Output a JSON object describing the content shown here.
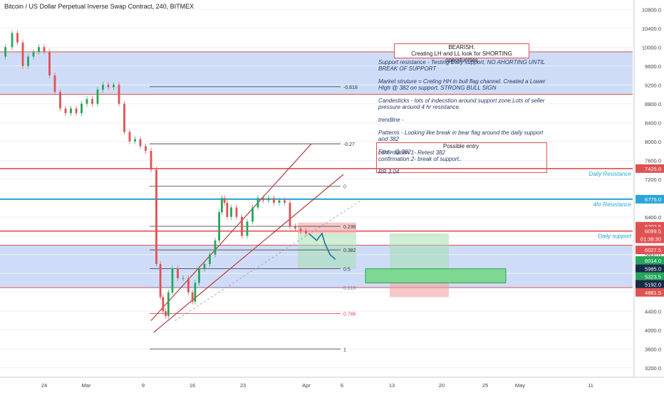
{
  "header": {
    "title": "Bitcoin / US Dollar Perpetual Inverse Swap Contract, 240, BITMEX"
  },
  "chart_data": {
    "type": "candlestick",
    "ylim": [
      3000,
      11000
    ],
    "y_ticks": [
      3200,
      3600,
      4000,
      4400,
      4800,
      5200,
      5600,
      6000,
      6400,
      6800,
      7200,
      7600,
      8000,
      8400,
      8800,
      9200,
      9600,
      10000,
      10400,
      10800
    ],
    "y_tick_labels": [
      "3200.0",
      "3600.0",
      "4000.0",
      "4400.0",
      "4800.0",
      "5200.0",
      "5600.0",
      "6000.0",
      "6400.0",
      "6800.0",
      "7200.0",
      "7600.0",
      "8000.0",
      "8400.0",
      "8800.0",
      "9200.0",
      "9600.0",
      "10000.0",
      "10400.0",
      "10800.0"
    ],
    "x_ticks": [
      "24",
      "Mar",
      "9",
      "16",
      "23",
      "Apr",
      "6",
      "13",
      "20",
      "25",
      "May",
      "11"
    ],
    "price_path": [
      [
        0,
        9800
      ],
      [
        3,
        10000
      ],
      [
        5,
        10300
      ],
      [
        7,
        10100
      ],
      [
        9,
        9600
      ],
      [
        11,
        9800
      ],
      [
        13,
        9900
      ],
      [
        15,
        10000
      ],
      [
        17,
        9900
      ],
      [
        19,
        9400
      ],
      [
        21,
        9050
      ],
      [
        23,
        8700
      ],
      [
        25,
        8600
      ],
      [
        27,
        8700
      ],
      [
        29,
        8600
      ],
      [
        31,
        8800
      ],
      [
        33,
        8900
      ],
      [
        35,
        8800
      ],
      [
        37,
        9100
      ],
      [
        39,
        9200
      ],
      [
        41,
        9150
      ],
      [
        43,
        9200
      ],
      [
        45,
        8800
      ],
      [
        47,
        8200
      ],
      [
        49,
        8000
      ],
      [
        51,
        8050
      ],
      [
        53,
        7900
      ],
      [
        55,
        7800
      ],
      [
        57,
        7400
      ],
      [
        59,
        5400
      ],
      [
        60,
        4700
      ],
      [
        61,
        4400
      ],
      [
        62,
        4300
      ],
      [
        63,
        4800
      ],
      [
        65,
        5300
      ],
      [
        67,
        5100
      ],
      [
        69,
        5100
      ],
      [
        71,
        4800
      ],
      [
        72,
        4600
      ],
      [
        73,
        5000
      ],
      [
        75,
        5300
      ],
      [
        77,
        5400
      ],
      [
        79,
        5600
      ],
      [
        81,
        5900
      ],
      [
        82,
        6500
      ],
      [
        83,
        6800
      ],
      [
        84,
        6700
      ],
      [
        85,
        6400
      ],
      [
        87,
        6600
      ],
      [
        89,
        6400
      ],
      [
        91,
        6000
      ],
      [
        93,
        6300
      ],
      [
        95,
        6600
      ],
      [
        97,
        6800
      ],
      [
        99,
        6750
      ],
      [
        101,
        6800
      ],
      [
        103,
        6700
      ],
      [
        105,
        6750
      ],
      [
        107,
        6700
      ],
      [
        109,
        6200
      ],
      [
        111,
        6150
      ],
      [
        113,
        6100
      ],
      [
        115,
        6050
      ]
    ],
    "projection_path": [
      [
        115,
        6050
      ],
      [
        117,
        5950
      ],
      [
        118,
        5900
      ],
      [
        120,
        6050
      ],
      [
        121,
        5850
      ],
      [
        123,
        5600
      ],
      [
        125,
        5500
      ]
    ],
    "channel": {
      "upper": [
        [
          52,
          5500
        ],
        [
          120,
          7950
        ]
      ],
      "lower": [
        [
          58,
          4050
        ],
        [
          134,
          7300
        ]
      ],
      "dashed": [
        [
          65,
          4200
        ],
        [
          136,
          6800
        ]
      ]
    },
    "fib_levels": [
      {
        "label": "-0.618",
        "price": 9160,
        "x_start": 58,
        "x_end": 131,
        "color": "#333333"
      },
      {
        "label": "-0.27",
        "price": 7950,
        "x_start": 58,
        "x_end": 131,
        "color": "#333333"
      },
      {
        "label": "0",
        "price": 7050,
        "x_start": 58,
        "x_end": 131,
        "color": "#555555"
      },
      {
        "label": "0.236",
        "price": 6200,
        "x_start": 58,
        "x_end": 131,
        "color": "#333333"
      },
      {
        "label": "0.382",
        "price": 5700,
        "x_start": 58,
        "x_end": 131,
        "color": "#333333"
      },
      {
        "label": "0.5",
        "price": 5300,
        "x_start": 58,
        "x_end": 131,
        "color": "#333333"
      },
      {
        "label": "0.618",
        "price": 4900,
        "x_start": 58,
        "x_end": 131,
        "color": "#7a78c9"
      },
      {
        "label": "0.786",
        "price": 4350,
        "x_start": 58,
        "x_end": 131,
        "color": "#e05252"
      },
      {
        "label": "1",
        "price": 3600,
        "x_start": 58,
        "x_end": 131,
        "color": "#333333"
      }
    ],
    "horizontal_lines": [
      {
        "label": "Daily Resistance",
        "price": 7425,
        "color": "#e05252"
      },
      {
        "label": "4hr Resistance",
        "price": 6775,
        "color": "#2aa7d6"
      },
      {
        "label": "Daily support",
        "price": 6099.5,
        "color": "#e05252"
      }
    ],
    "zones": [
      {
        "name": "upper-resistance-zone",
        "y1": 9000,
        "y2": 9900,
        "color": "#c7d6f7"
      },
      {
        "name": "lower-support-zone",
        "y1": 4900,
        "y2": 5800,
        "color": "#c7d6f7"
      }
    ],
    "price_labels": [
      {
        "text": "7425.0",
        "price": 7425,
        "bg": "#e05252"
      },
      {
        "text": "6775.0",
        "price": 6775,
        "bg": "#2aa7d6"
      },
      {
        "text": "6202.5",
        "price": 6202.5,
        "bg": "#e05252"
      },
      {
        "text": "6099.5",
        "price": 6099.5,
        "bg": "#e05252"
      },
      {
        "text": "01:38:30",
        "price": 5935,
        "bg": "#e05252"
      },
      {
        "text": "6027.5",
        "price": 5700,
        "bg": "#e05252"
      },
      {
        "text": "6014.0",
        "price": 5475,
        "bg": "#26a65b"
      },
      {
        "text": "5985.0",
        "price": 5300,
        "bg": "#1a2a4a"
      },
      {
        "text": "5323.5",
        "price": 5135,
        "bg": "#26a65b"
      },
      {
        "text": "5192.0",
        "price": 4970,
        "bg": "#1a2a4a"
      },
      {
        "text": "4881.5",
        "price": 4800,
        "bg": "#e05252"
      }
    ],
    "right_annotations": [
      {
        "text": "Daily Resistance",
        "price": 7425,
        "color": "#2aa7d6"
      },
      {
        "text": "4hr Resistance",
        "price": 6775,
        "color": "#2aa7d6"
      },
      {
        "text": "Daily support",
        "price": 6099.5,
        "color": "#2aa7d6"
      }
    ]
  },
  "annotations": {
    "bearish_title": "BEARISH.\nCreating LH and LL look for SHORTING opportunities",
    "analysis": "Support resistance -  Testing Daily support, NO AHORTING UNTIL BREAK OF SUPPORT\n\nMarket struture = Creting HH in bull flag channel. Created a Lower HIgh @ 382 on support. STRONG BULL SIGN\n\nCandesticks - lots of indecstion around support zone.Lots of seller pressure around 4 hr resistance.\n\ntrendline -\n\nPatterns - Looking like break in bear flag around the daily support and 382\n\nFibs -  @ 382",
    "entry_title": "Possible entry",
    "entry_body": "confirmation 1- Retest 382\nconfirmation 2- break of support..\n\nRR 3.04"
  },
  "colors": {
    "bull": "#26a65b",
    "bear": "#e05252",
    "zone": "#c7d6f7",
    "projection": "#1f6f9f"
  }
}
